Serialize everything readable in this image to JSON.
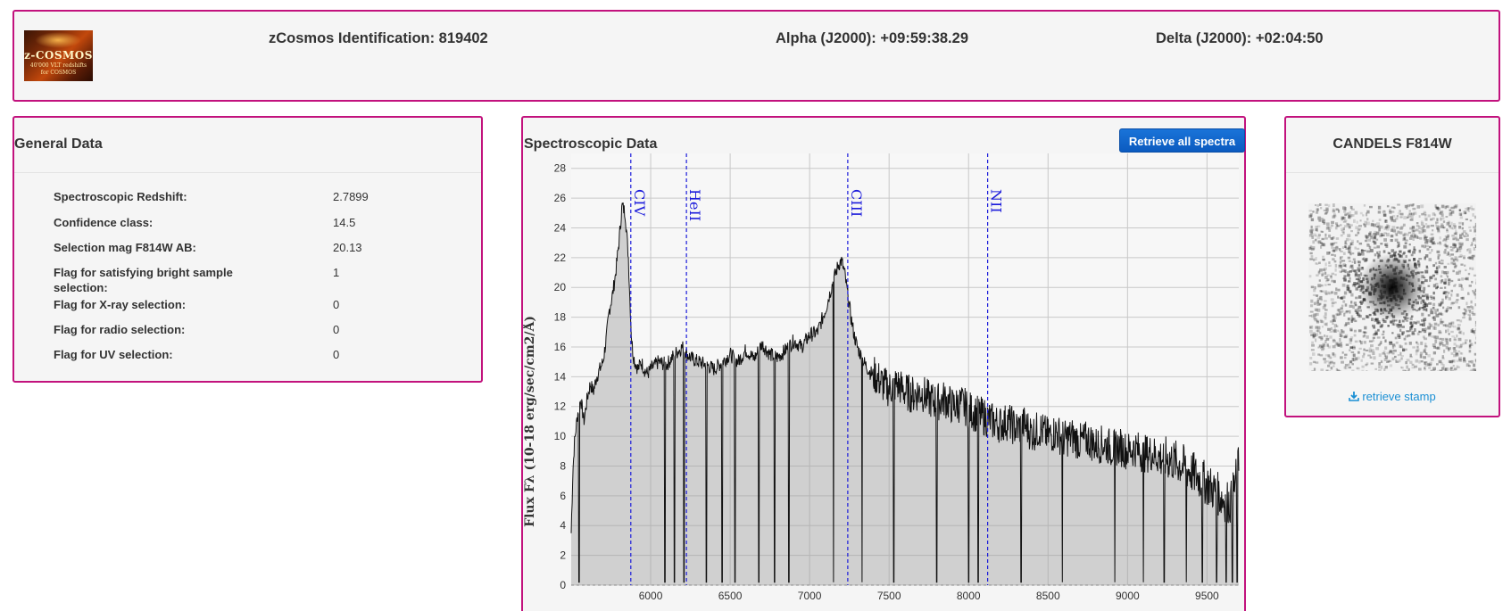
{
  "header": {
    "logo": {
      "line1": "z-COSMOS",
      "line2": "40'000 VLT redshifts",
      "line3": "for COSMOS"
    },
    "identification": "zCosmos Identification: 819402",
    "alpha": "Alpha (J2000): +09:59:38.29",
    "delta": "Delta (J2000): +02:04:50"
  },
  "general": {
    "title": "General Data",
    "rows": [
      {
        "label": "Spectroscopic Redshift:",
        "value": "2.7899"
      },
      {
        "label": "Confidence class:",
        "value": "14.5"
      },
      {
        "label": "Selection mag F814W AB:",
        "value": "20.13"
      },
      {
        "label": "Flag for satisfying bright sample selection:",
        "value": "1"
      },
      {
        "label": "Flag for X-ray selection:",
        "value": "0"
      },
      {
        "label": "Flag for radio selection:",
        "value": "0"
      },
      {
        "label": "Flag for UV selection:",
        "value": "0"
      }
    ]
  },
  "spectro": {
    "title": "Spectroscopic Data",
    "button": "Retrieve all spectra"
  },
  "candels": {
    "title": "CANDELS F814W",
    "retrieve": "retrieve stamp",
    "icon": "download-icon"
  },
  "colors": {
    "accent_border": "#c2127d",
    "button": "#0b5bc0",
    "link": "#1a8fd4",
    "line_marker": "#1a1adb"
  },
  "chart_data": {
    "type": "area",
    "title": "",
    "xlabel": "",
    "ylabel": "Flux Fλ (10-18 erg/sec/cm2/Å)",
    "xlim": [
      5500,
      9700
    ],
    "ylim": [
      0,
      29
    ],
    "xticks": [
      6000,
      6500,
      7000,
      7500,
      8000,
      8500,
      9000,
      9500
    ],
    "yticks": [
      0,
      2,
      4,
      6,
      8,
      10,
      12,
      14,
      16,
      18,
      20,
      22,
      24,
      26,
      28
    ],
    "grid": true,
    "emission_lines": [
      {
        "name": "CIV",
        "x": 5875
      },
      {
        "name": "HeII",
        "x": 6225
      },
      {
        "name": "CIII",
        "x": 7240
      },
      {
        "name": "NII",
        "x": 8120
      }
    ],
    "series": [
      {
        "x": [
          5500,
          5510,
          5520,
          5540,
          5560,
          5580,
          5600,
          5620,
          5640,
          5660,
          5680,
          5700,
          5720,
          5740,
          5760,
          5780,
          5800,
          5820,
          5840,
          5860,
          5870,
          5880,
          5890,
          5900,
          5910,
          5920,
          5940,
          5960,
          5980,
          6000,
          6050,
          6100,
          6150,
          6200,
          6230,
          6260,
          6300,
          6350,
          6400,
          6450,
          6500,
          6550,
          6600,
          6650,
          6700,
          6750,
          6800,
          6850,
          6900,
          6950,
          7000,
          7050,
          7100,
          7150,
          7180,
          7200,
          7220,
          7240,
          7260,
          7280,
          7300,
          7340,
          7380,
          7420,
          7460,
          7500,
          7550,
          7600,
          7650,
          7700,
          7750,
          7800,
          7850,
          7900,
          7950,
          8000,
          8050,
          8100,
          8150,
          8200,
          8250,
          8300,
          8350,
          8400,
          8450,
          8500,
          8550,
          8600,
          8650,
          8700,
          8750,
          8800,
          8850,
          8900,
          8950,
          9000,
          9050,
          9100,
          9150,
          9200,
          9250,
          9300,
          9350,
          9400,
          9450,
          9500,
          9550,
          9600,
          9650,
          9700
        ],
        "y": [
          3.5,
          7.5,
          9.5,
          11.5,
          12.5,
          11,
          12.5,
          13.5,
          13,
          14,
          14.5,
          15,
          16.5,
          18.5,
          19.5,
          21,
          23,
          25.5,
          25,
          22,
          19,
          16.5,
          15.5,
          15,
          14.8,
          14.5,
          15,
          14.5,
          14.2,
          14.5,
          15,
          14.8,
          15.5,
          16,
          15.5,
          15.2,
          15,
          14.8,
          14.5,
          15,
          15.5,
          15,
          15.8,
          15.2,
          16.2,
          15.5,
          15.3,
          15.8,
          16.4,
          16,
          16.8,
          17,
          18.5,
          20.5,
          21.5,
          21.8,
          21,
          19.5,
          18,
          16.8,
          16,
          15,
          14.3,
          14,
          13.5,
          13.2,
          13.5,
          13,
          12.8,
          13,
          12.5,
          12.3,
          12.5,
          12,
          12.2,
          11.8,
          11.5,
          11.3,
          11,
          10.8,
          11,
          10.5,
          10.8,
          10.2,
          10.5,
          10,
          10.3,
          9.8,
          10,
          9.6,
          9.8,
          9.4,
          9.5,
          9.2,
          9.3,
          9,
          9.2,
          8.8,
          8.9,
          8.6,
          8.5,
          8.3,
          8,
          7.6,
          7.2,
          6.8,
          6.3,
          5.8,
          5.5,
          8
        ]
      }
    ],
    "absorption_dips_x": [
      5550,
      6090,
      6150,
      6210,
      6350,
      6450,
      6530,
      6680,
      6780,
      6870,
      7150,
      7330,
      7530,
      7800,
      8000,
      8060,
      8330,
      8590,
      8920,
      9100,
      9230,
      9370,
      9470,
      9560,
      9620,
      9660,
      9690
    ]
  }
}
